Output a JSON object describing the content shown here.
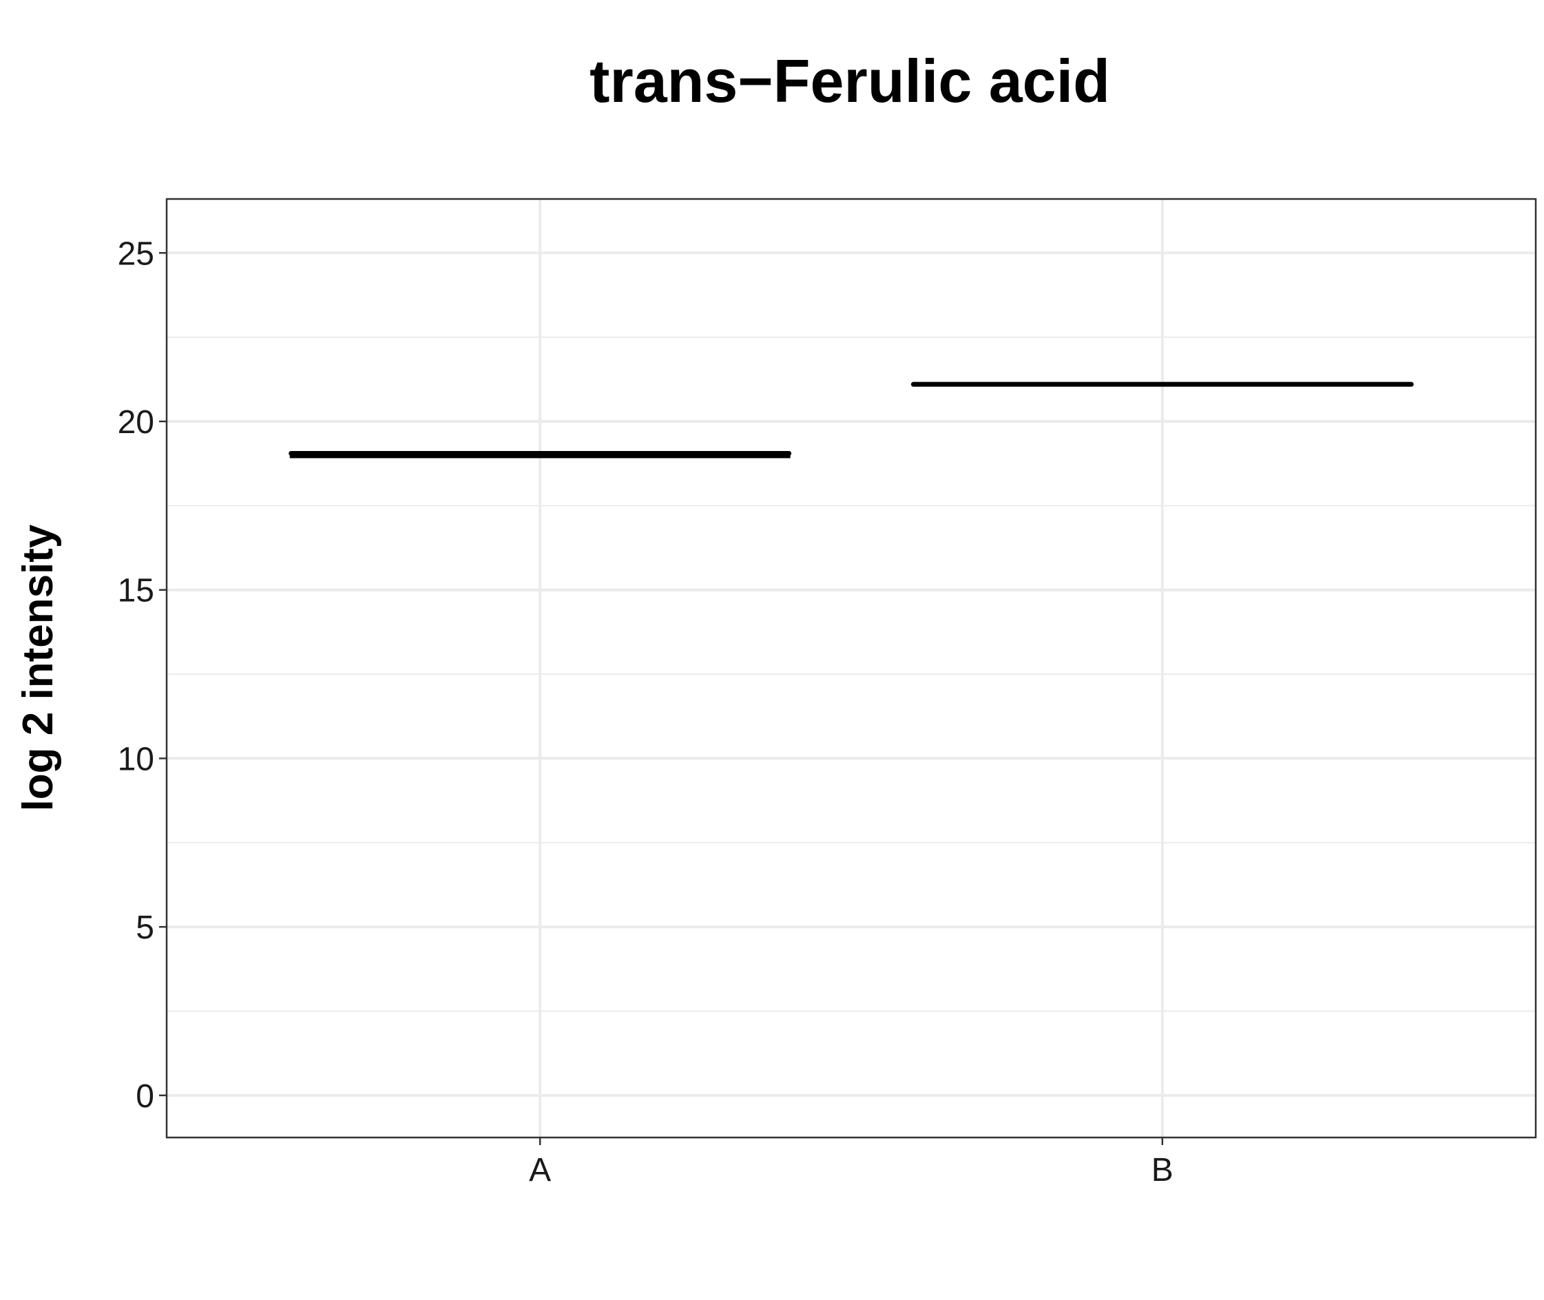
{
  "chart_data": {
    "type": "boxplot",
    "title": "trans−Ferulic acid",
    "xlabel": "",
    "ylabel": "log 2 intensity",
    "categories": [
      "A",
      "B"
    ],
    "ylim": [
      -1.25,
      26.6
    ],
    "yticks": [
      0,
      5,
      10,
      15,
      20,
      25
    ],
    "grid": true,
    "legend": "none",
    "boxes": [
      {
        "category": "A",
        "lower": 18.95,
        "q1": 18.95,
        "median": 19.05,
        "q3": 19.05,
        "upper": 19.05
      },
      {
        "category": "B",
        "lower": 21.1,
        "q1": 21.1,
        "median": 21.1,
        "q3": 21.1,
        "upper": 21.1
      }
    ]
  }
}
